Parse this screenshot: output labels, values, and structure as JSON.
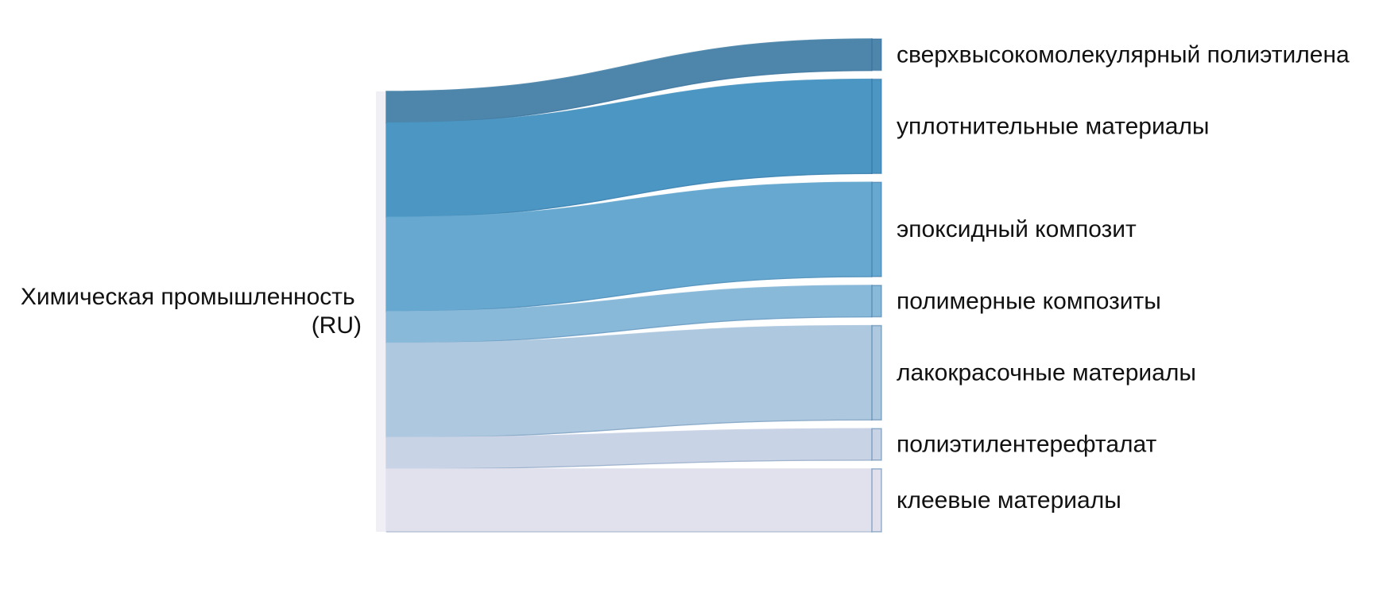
{
  "chart_data": {
    "type": "sankey",
    "source": {
      "name_lines": [
        "Химическая промышленность",
        "(RU)"
      ]
    },
    "nodes": [
      {
        "name": "сверхвысокомолекулярный полиэтилена",
        "value": 1,
        "color": "#4e86ab"
      },
      {
        "name": "уплотнительные материалы",
        "value": 3,
        "color": "#4b96c2"
      },
      {
        "name": "эпоксидный композит",
        "value": 3,
        "color": "#66a8cf"
      },
      {
        "name": "полимерные композиты",
        "value": 1,
        "color": "#89b9d9"
      },
      {
        "name": "лакокрасочные материалы",
        "value": 3,
        "color": "#adc8df"
      },
      {
        "name": "полиэтилентерефталат",
        "value": 1,
        "color": "#c9d3e6"
      },
      {
        "name": "клеевые материалы",
        "value": 2,
        "color": "#e1e1ee"
      }
    ]
  }
}
